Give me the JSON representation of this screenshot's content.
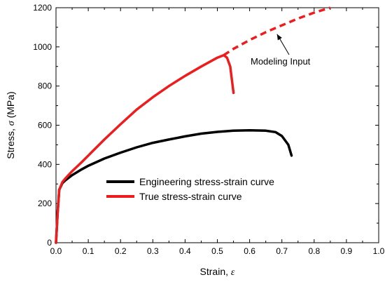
{
  "chart_data": {
    "type": "line",
    "xlabel": "Strain, ",
    "xlabel_symbol": "ε",
    "ylabel": "Stress, ",
    "ylabel_symbol": "σ",
    "ylabel_unit": " (MPa)",
    "xlim": [
      0,
      1.0
    ],
    "ylim": [
      0,
      1200
    ],
    "x_ticks": [
      0,
      0.1,
      0.2,
      0.3,
      0.4,
      0.5,
      0.6,
      0.7,
      0.8,
      0.9,
      1.0
    ],
    "x_tick_labels": [
      "0.0",
      "0.1",
      "0.2",
      "0.3",
      "0.4",
      "0.5",
      "0.6",
      "0.7",
      "0.8",
      "0.9",
      "1.0"
    ],
    "y_ticks": [
      0,
      200,
      400,
      600,
      800,
      1000,
      1200
    ],
    "y_tick_labels": [
      "0",
      "200",
      "400",
      "600",
      "800",
      "1000",
      "1200"
    ],
    "grid": false,
    "legend_position": "lower-center",
    "series": [
      {
        "name": "Engineering stress-strain curve",
        "color": "#000000",
        "style": "solid",
        "x": [
          0.0,
          0.005,
          0.01,
          0.02,
          0.03,
          0.05,
          0.08,
          0.1,
          0.15,
          0.2,
          0.25,
          0.3,
          0.35,
          0.4,
          0.45,
          0.5,
          0.55,
          0.6,
          0.65,
          0.68,
          0.7,
          0.72,
          0.73
        ],
        "y": [
          0,
          150,
          270,
          305,
          320,
          345,
          375,
          393,
          430,
          460,
          487,
          510,
          527,
          543,
          557,
          566,
          572,
          574,
          572,
          565,
          545,
          500,
          445
        ]
      },
      {
        "name": "True stress-strain curve",
        "color": "#ee1c1c",
        "style": "solid",
        "x": [
          0.0,
          0.005,
          0.01,
          0.02,
          0.03,
          0.05,
          0.08,
          0.1,
          0.15,
          0.2,
          0.25,
          0.3,
          0.35,
          0.4,
          0.45,
          0.5,
          0.52,
          0.53,
          0.54,
          0.55
        ],
        "y": [
          0,
          150,
          270,
          310,
          330,
          365,
          412,
          445,
          527,
          605,
          680,
          743,
          800,
          852,
          900,
          945,
          958,
          945,
          900,
          765
        ]
      },
      {
        "name": "Modeling Input",
        "color": "#ee1c1c",
        "style": "dashed",
        "x": [
          0.52,
          0.55,
          0.6,
          0.65,
          0.7,
          0.75,
          0.8,
          0.85
        ],
        "y": [
          958,
          990,
          1035,
          1075,
          1110,
          1145,
          1175,
          1200
        ]
      }
    ],
    "legend": [
      {
        "label": "Engineering stress-strain curve",
        "color": "#000000"
      },
      {
        "label": "True stress-strain curve",
        "color": "#ee1c1c"
      }
    ],
    "annotations": [
      {
        "text": "Modeling Input",
        "arrow_to": [
          0.685,
          1065
        ]
      }
    ]
  }
}
